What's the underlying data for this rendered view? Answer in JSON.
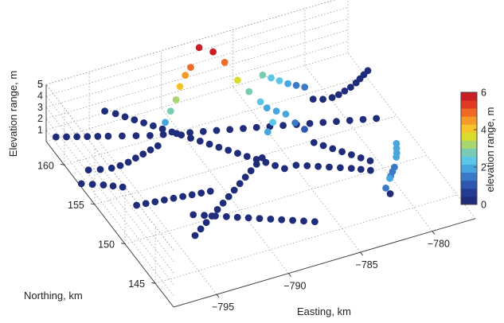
{
  "chart_data": {
    "type": "scatter",
    "projection": "3d",
    "xlabel": "Easting, km",
    "ylabel": "Northing, km",
    "zlabel": "Elevation range, m",
    "x_ticks": [
      -795,
      -790,
      -785,
      -780
    ],
    "y_ticks": [
      145,
      150,
      155,
      160
    ],
    "z_ticks": [
      1,
      2,
      3,
      4,
      5
    ],
    "xlim": [
      -798,
      -777
    ],
    "ylim": [
      142,
      163
    ],
    "zlim": [
      0,
      5
    ],
    "grid": true,
    "colorbar": {
      "label": "elevation range, m",
      "min": 0,
      "max": 6,
      "ticks": [
        0,
        2,
        4,
        6
      ],
      "colormap": "jet",
      "colors": [
        "#1f2c7a",
        "#243b94",
        "#2f56b0",
        "#3a78c8",
        "#46a6dd",
        "#5cc6e6",
        "#79cbb4",
        "#a9d56e",
        "#d9dc2d",
        "#f6c42a",
        "#f39a28",
        "#ee6a26",
        "#e03a25",
        "#c81f24"
      ]
    },
    "series": [
      {
        "points": [
          {
            "x": -797.4,
            "y": 162.8,
            "z": 0.3
          },
          {
            "x": -796.8,
            "y": 162.5,
            "z": 0.3
          },
          {
            "x": -796.2,
            "y": 162.2,
            "z": 0.3
          },
          {
            "x": -795.6,
            "y": 161.9,
            "z": 0.3
          },
          {
            "x": -795.0,
            "y": 161.6,
            "z": 0.3
          },
          {
            "x": -794.4,
            "y": 161.3,
            "z": 0.3
          },
          {
            "x": -793.6,
            "y": 160.9,
            "z": 0.3
          },
          {
            "x": -792.8,
            "y": 160.5,
            "z": 0.3
          },
          {
            "x": -792.0,
            "y": 160.1,
            "z": 0.3
          },
          {
            "x": -791.2,
            "y": 159.8,
            "z": 0.3
          },
          {
            "x": -790.4,
            "y": 159.5,
            "z": 0.3
          },
          {
            "x": -789.6,
            "y": 159.2,
            "z": 0.3
          },
          {
            "x": -788.8,
            "y": 158.9,
            "z": 0.3
          },
          {
            "x": -788.0,
            "y": 158.6,
            "z": 0.3
          },
          {
            "x": -787.2,
            "y": 158.3,
            "z": 0.3
          },
          {
            "x": -786.4,
            "y": 158.0,
            "z": 0.3
          },
          {
            "x": -785.6,
            "y": 157.7,
            "z": 0.3
          },
          {
            "x": -784.8,
            "y": 157.4,
            "z": 0.3
          },
          {
            "x": -784.0,
            "y": 157.1,
            "z": 0.3
          },
          {
            "x": -783.2,
            "y": 156.8,
            "z": 0.3
          },
          {
            "x": -782.4,
            "y": 156.5,
            "z": 0.3
          },
          {
            "x": -781.6,
            "y": 156.2,
            "z": 0.3
          },
          {
            "x": -780.8,
            "y": 155.9,
            "z": 0.3
          },
          {
            "x": -780.0,
            "y": 155.6,
            "z": 0.3
          },
          {
            "x": -779.2,
            "y": 155.3,
            "z": 0.3
          },
          {
            "x": -778.4,
            "y": 155.0,
            "z": 0.3
          }
        ]
      },
      {
        "points": [
          {
            "x": -793.5,
            "y": 164.0,
            "z": 0.3
          },
          {
            "x": -793.0,
            "y": 163.4,
            "z": 0.3
          },
          {
            "x": -792.6,
            "y": 162.8,
            "z": 0.3
          },
          {
            "x": -792.2,
            "y": 162.2,
            "z": 0.3
          },
          {
            "x": -791.8,
            "y": 161.6,
            "z": 0.3
          },
          {
            "x": -791.4,
            "y": 161.0,
            "z": 0.3
          },
          {
            "x": -791.0,
            "y": 160.4,
            "z": 0.3
          },
          {
            "x": -790.6,
            "y": 159.8,
            "z": 0.3
          },
          {
            "x": -790.2,
            "y": 159.2,
            "z": 0.3
          },
          {
            "x": -789.8,
            "y": 158.6,
            "z": 0.3
          },
          {
            "x": -789.4,
            "y": 158.0,
            "z": 0.3
          },
          {
            "x": -789.0,
            "y": 157.4,
            "z": 0.3
          },
          {
            "x": -788.6,
            "y": 156.8,
            "z": 0.3
          },
          {
            "x": -788.2,
            "y": 156.2,
            "z": 0.3
          },
          {
            "x": -787.8,
            "y": 155.6,
            "z": 0.3
          },
          {
            "x": -787.4,
            "y": 155.0,
            "z": 0.3
          },
          {
            "x": -787.0,
            "y": 154.4,
            "z": 0.3
          },
          {
            "x": -786.6,
            "y": 153.8,
            "z": 0.3
          },
          {
            "x": -786.2,
            "y": 153.2,
            "z": 0.3
          },
          {
            "x": -785.8,
            "y": 152.6,
            "z": 0.3
          }
        ]
      },
      {
        "points": [
          {
            "x": -797.0,
            "y": 158.4,
            "z": 0.3
          },
          {
            "x": -796.3,
            "y": 158.1,
            "z": 0.3
          },
          {
            "x": -795.6,
            "y": 157.9,
            "z": 0.3
          },
          {
            "x": -795.0,
            "y": 157.9,
            "z": 0.3
          },
          {
            "x": -794.4,
            "y": 158.0,
            "z": 0.3
          },
          {
            "x": -793.8,
            "y": 158.2,
            "z": 0.3
          },
          {
            "x": -793.2,
            "y": 158.4,
            "z": 0.3
          },
          {
            "x": -792.6,
            "y": 158.6,
            "z": 0.3
          },
          {
            "x": -792.0,
            "y": 158.8,
            "z": 0.3
          },
          {
            "x": -791.4,
            "y": 159.0,
            "z": 2.0
          },
          {
            "x": -790.9,
            "y": 159.3,
            "z": 2.6
          },
          {
            "x": -790.4,
            "y": 159.6,
            "z": 3.2
          },
          {
            "x": -790.0,
            "y": 159.9,
            "z": 4.0
          },
          {
            "x": -789.5,
            "y": 160.2,
            "z": 4.6
          },
          {
            "x": -789.0,
            "y": 160.5,
            "z": 4.9
          },
          {
            "x": -788.2,
            "y": 161.0,
            "z": 6.0
          },
          {
            "x": -787.4,
            "y": 160.6,
            "z": 5.6
          },
          {
            "x": -786.8,
            "y": 160.1,
            "z": 4.8
          },
          {
            "x": -786.2,
            "y": 159.4,
            "z": 3.5
          },
          {
            "x": -785.7,
            "y": 158.7,
            "z": 2.8
          },
          {
            "x": -785.2,
            "y": 158.0,
            "z": 2.2
          }
        ]
      },
      {
        "points": [
          {
            "x": -798.0,
            "y": 157.2,
            "z": 0.3
          },
          {
            "x": -797.4,
            "y": 156.8,
            "z": 0.3
          },
          {
            "x": -796.8,
            "y": 156.4,
            "z": 0.3
          },
          {
            "x": -796.3,
            "y": 156.0,
            "z": 0.3
          },
          {
            "x": -795.8,
            "y": 155.6,
            "z": 0.3
          }
        ]
      },
      {
        "points": [
          {
            "x": -784.2,
            "y": 160.0,
            "z": 2.8
          },
          {
            "x": -783.7,
            "y": 159.8,
            "z": 2.5
          },
          {
            "x": -783.2,
            "y": 159.6,
            "z": 2.2
          },
          {
            "x": -782.7,
            "y": 159.4,
            "z": 1.9
          },
          {
            "x": -782.2,
            "y": 159.2,
            "z": 1.7
          },
          {
            "x": -781.7,
            "y": 159.0,
            "z": 1.5
          },
          {
            "x": -781.2,
            "y": 158.8,
            "z": 0.4
          },
          {
            "x": -780.6,
            "y": 158.6,
            "z": 0.3
          },
          {
            "x": -780.0,
            "y": 158.5,
            "z": 0.3
          },
          {
            "x": -779.5,
            "y": 158.6,
            "z": 0.3
          },
          {
            "x": -779.0,
            "y": 158.8,
            "z": 0.3
          },
          {
            "x": -778.5,
            "y": 159.0,
            "z": 0.3
          },
          {
            "x": -778.0,
            "y": 159.3,
            "z": 0.3
          },
          {
            "x": -777.6,
            "y": 159.6,
            "z": 0.3
          },
          {
            "x": -777.2,
            "y": 159.9,
            "z": 0.3
          },
          {
            "x": -776.8,
            "y": 160.2,
            "z": 0.3
          }
        ]
      },
      {
        "points": [
          {
            "x": -785.0,
            "y": 157.4,
            "z": 2.0
          },
          {
            "x": -784.6,
            "y": 156.8,
            "z": 2.0
          },
          {
            "x": -784.2,
            "y": 156.2,
            "z": 2.0
          },
          {
            "x": -783.8,
            "y": 155.6,
            "z": 1.5
          },
          {
            "x": -783.4,
            "y": 155.0,
            "z": 1.2
          },
          {
            "x": -783.0,
            "y": 154.4,
            "z": 0.3
          },
          {
            "x": -782.6,
            "y": 153.8,
            "z": 0.3
          },
          {
            "x": -782.2,
            "y": 153.2,
            "z": 0.3
          },
          {
            "x": -781.8,
            "y": 152.6,
            "z": 0.3
          },
          {
            "x": -781.4,
            "y": 152.0,
            "z": 0.3
          },
          {
            "x": -781.0,
            "y": 151.4,
            "z": 0.3
          },
          {
            "x": -780.6,
            "y": 150.8,
            "z": 0.3
          }
        ]
      },
      {
        "points": [
          {
            "x": -795.8,
            "y": 153.3,
            "z": 0.3
          },
          {
            "x": -795.2,
            "y": 153.2,
            "z": 0.3
          },
          {
            "x": -794.6,
            "y": 153.1,
            "z": 0.3
          },
          {
            "x": -794.0,
            "y": 153.0,
            "z": 0.3
          },
          {
            "x": -793.4,
            "y": 152.9,
            "z": 0.3
          },
          {
            "x": -792.8,
            "y": 152.8,
            "z": 0.3
          },
          {
            "x": -792.2,
            "y": 152.7,
            "z": 0.3
          },
          {
            "x": -791.6,
            "y": 152.6,
            "z": 0.3
          },
          {
            "x": -791.0,
            "y": 152.5,
            "z": 0.3
          }
        ]
      },
      {
        "points": [
          {
            "x": -793.8,
            "y": 148.4,
            "z": 0.3
          },
          {
            "x": -793.2,
            "y": 148.9,
            "z": 0.3
          },
          {
            "x": -792.6,
            "y": 149.4,
            "z": 0.3
          },
          {
            "x": -792.0,
            "y": 149.9,
            "z": 0.3
          },
          {
            "x": -791.4,
            "y": 150.4,
            "z": 0.3
          },
          {
            "x": -790.8,
            "y": 150.9,
            "z": 0.3
          },
          {
            "x": -790.2,
            "y": 151.4,
            "z": 0.3
          },
          {
            "x": -789.6,
            "y": 151.9,
            "z": 0.3
          },
          {
            "x": -789.0,
            "y": 152.4,
            "z": 0.3
          },
          {
            "x": -788.4,
            "y": 152.9,
            "z": 0.3
          },
          {
            "x": -787.8,
            "y": 153.4,
            "z": 0.3
          },
          {
            "x": -787.2,
            "y": 153.9,
            "z": 0.3
          },
          {
            "x": -786.6,
            "y": 154.4,
            "z": 0.3
          },
          {
            "x": -786.0,
            "y": 154.9,
            "z": 2.0
          },
          {
            "x": -785.4,
            "y": 155.5,
            "z": 2.2
          }
        ]
      },
      {
        "points": [
          {
            "x": -793.0,
            "y": 150.6,
            "z": 0.3
          },
          {
            "x": -792.4,
            "y": 150.2,
            "z": 0.3
          },
          {
            "x": -791.8,
            "y": 149.8,
            "z": 0.3
          },
          {
            "x": -791.2,
            "y": 149.4,
            "z": 0.3
          },
          {
            "x": -790.6,
            "y": 149.0,
            "z": 0.3
          },
          {
            "x": -790.0,
            "y": 148.6,
            "z": 0.3
          },
          {
            "x": -789.4,
            "y": 148.2,
            "z": 0.3
          },
          {
            "x": -788.8,
            "y": 147.8,
            "z": 0.3
          },
          {
            "x": -788.2,
            "y": 147.4,
            "z": 0.3
          },
          {
            "x": -787.6,
            "y": 147.0,
            "z": 0.3
          },
          {
            "x": -787.0,
            "y": 146.6,
            "z": 0.3
          },
          {
            "x": -786.4,
            "y": 146.2,
            "z": 0.3
          }
        ]
      },
      {
        "points": [
          {
            "x": -785.0,
            "y": 152.6,
            "z": 0.3
          },
          {
            "x": -784.4,
            "y": 152.2,
            "z": 0.3
          },
          {
            "x": -783.8,
            "y": 151.8,
            "z": 0.3
          },
          {
            "x": -783.2,
            "y": 151.4,
            "z": 0.3
          },
          {
            "x": -782.6,
            "y": 151.0,
            "z": 0.3
          },
          {
            "x": -782.0,
            "y": 150.6,
            "z": 0.3
          },
          {
            "x": -781.5,
            "y": 150.2,
            "z": 0.3
          },
          {
            "x": -781.0,
            "y": 149.8,
            "z": 0.3
          }
        ]
      },
      {
        "points": [
          {
            "x": -779.2,
            "y": 149.8,
            "z": 2.0
          },
          {
            "x": -779.4,
            "y": 149.3,
            "z": 2.0
          },
          {
            "x": -779.6,
            "y": 148.8,
            "z": 2.0
          },
          {
            "x": -779.8,
            "y": 148.4,
            "z": 2.0
          },
          {
            "x": -780.1,
            "y": 148.0,
            "z": 1.5
          },
          {
            "x": -780.4,
            "y": 147.6,
            "z": 1.5
          },
          {
            "x": -780.7,
            "y": 147.2,
            "z": 1.5
          },
          {
            "x": -780.9,
            "y": 146.8,
            "z": 0.3
          },
          {
            "x": -781.1,
            "y": 146.4,
            "z": 2.0
          },
          {
            "x": -781.5,
            "y": 146.1,
            "z": 1.5
          }
        ]
      }
    ]
  }
}
